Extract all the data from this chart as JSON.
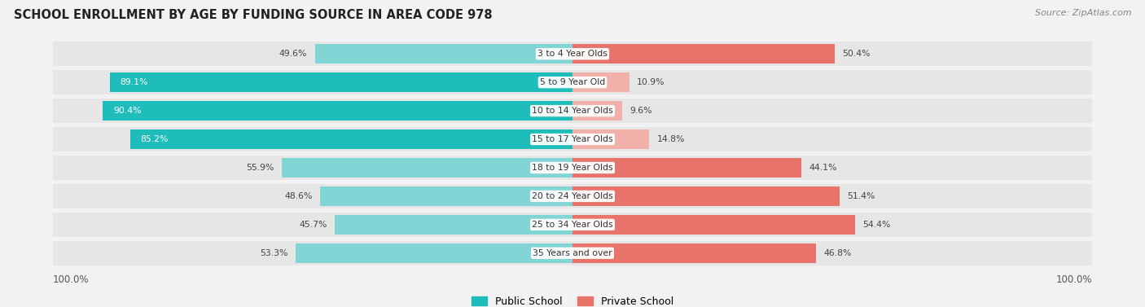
{
  "title": "SCHOOL ENROLLMENT BY AGE BY FUNDING SOURCE IN AREA CODE 978",
  "source": "Source: ZipAtlas.com",
  "categories": [
    "3 to 4 Year Olds",
    "5 to 9 Year Old",
    "10 to 14 Year Olds",
    "15 to 17 Year Olds",
    "18 to 19 Year Olds",
    "20 to 24 Year Olds",
    "25 to 34 Year Olds",
    "35 Years and over"
  ],
  "public_pct": [
    49.6,
    89.1,
    90.4,
    85.2,
    55.9,
    48.6,
    45.7,
    53.3
  ],
  "private_pct": [
    50.4,
    10.9,
    9.6,
    14.8,
    44.1,
    51.4,
    54.4,
    46.8
  ],
  "public_color_dark": "#1fbcbc",
  "public_color_light": "#82d5d5",
  "private_color_dark": "#e8736a",
  "private_color_light": "#f2b0aa",
  "bg_color": "#f2f2f2",
  "row_bg_odd": "#e8e8e8",
  "row_bg_even": "#ebebeb",
  "bar_height": 0.68,
  "legend_public": "Public School",
  "legend_private": "Private School"
}
